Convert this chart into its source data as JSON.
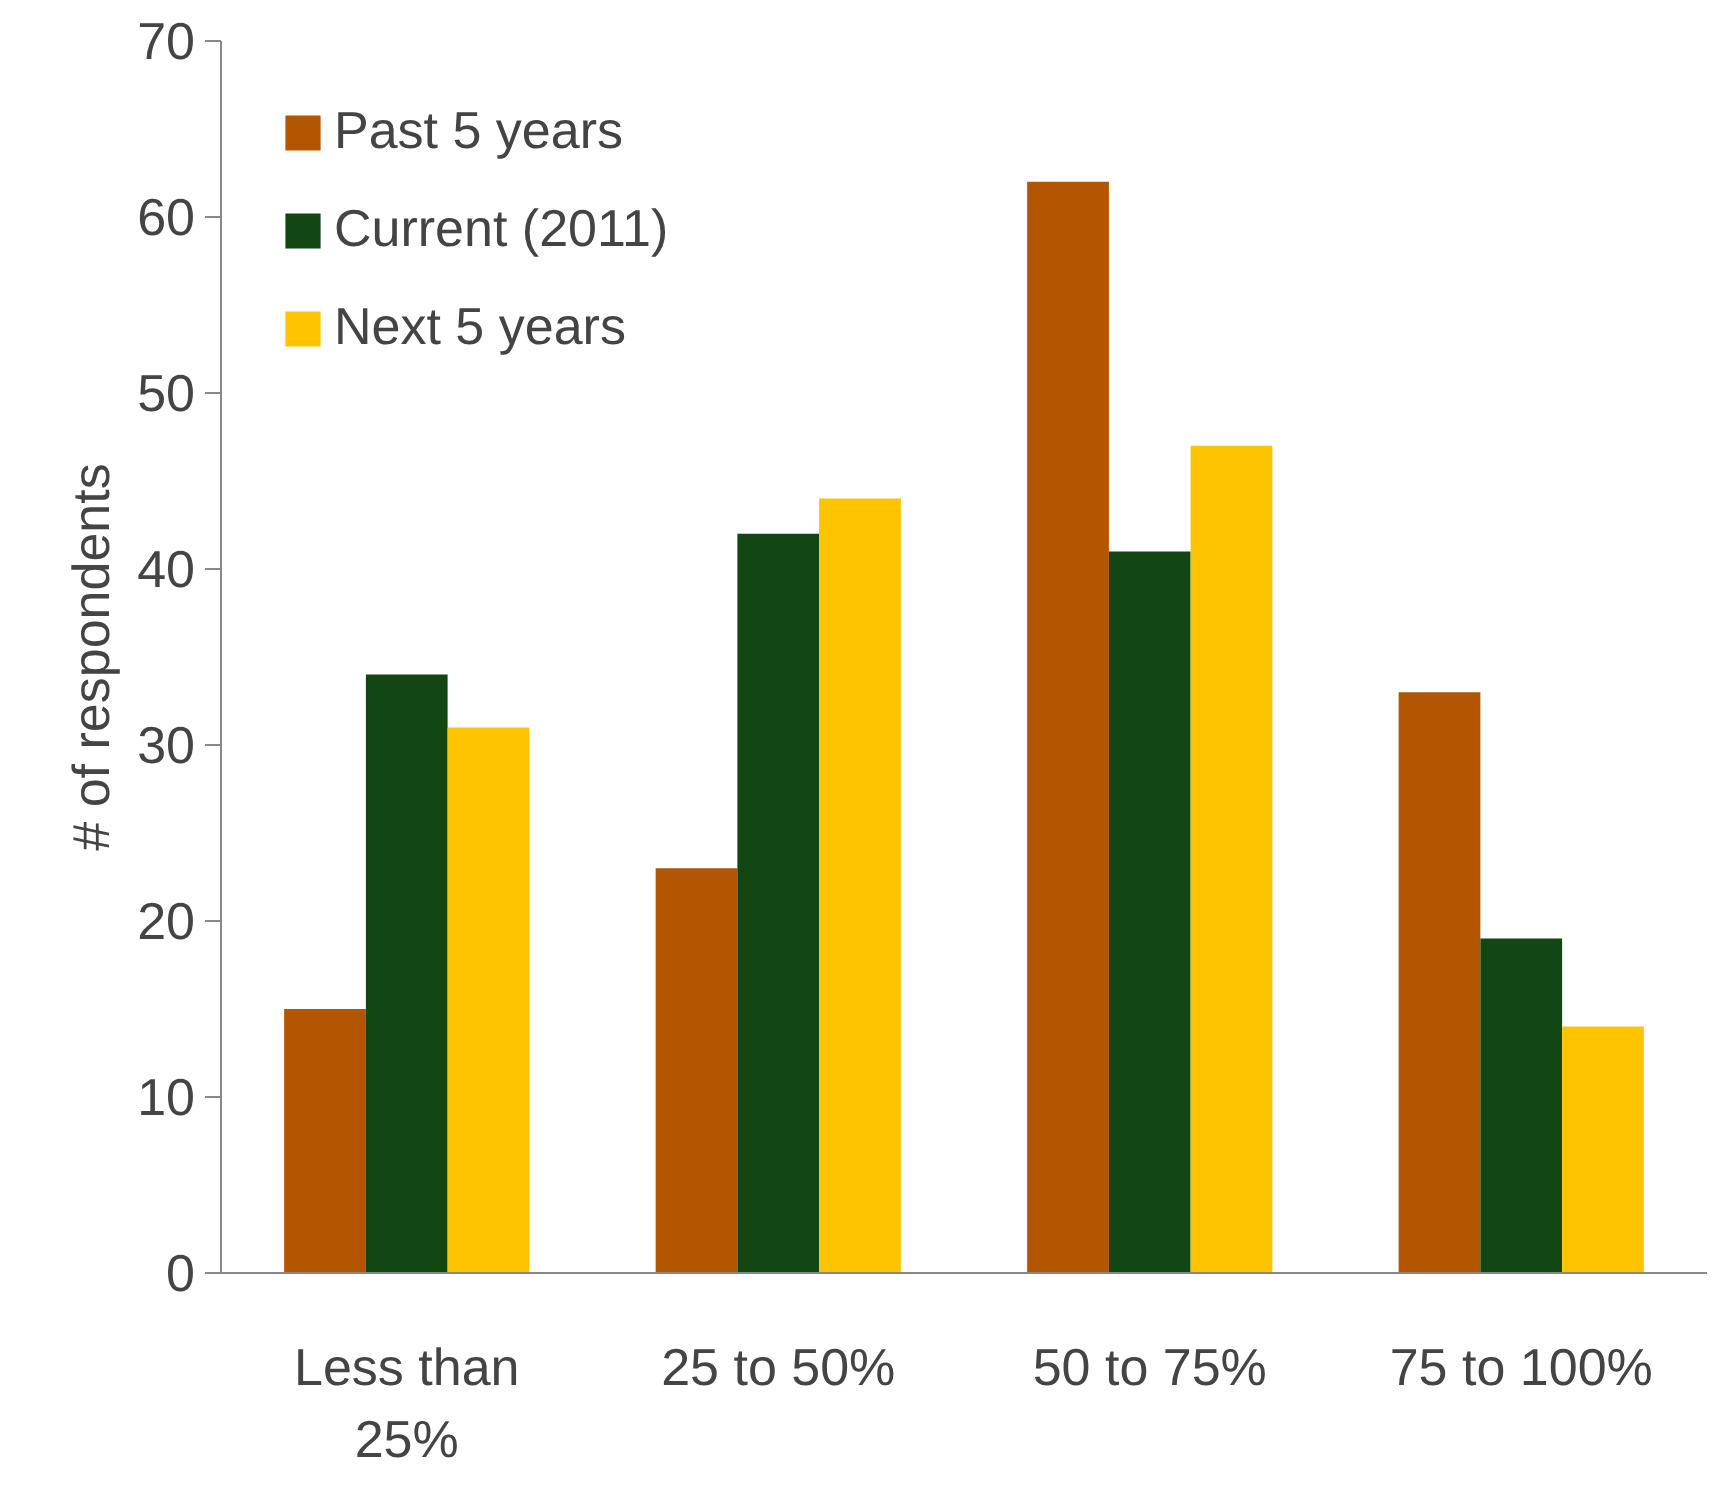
{
  "chart_data": {
    "type": "bar",
    "ylabel": "# of respondents",
    "categories": [
      "Less than 25%",
      "25 to 50%",
      "50 to 75%",
      "75 to 100%"
    ],
    "series": [
      {
        "name": "Past 5 years",
        "color": "#b35600",
        "values": [
          15,
          23,
          62,
          33
        ]
      },
      {
        "name": "Current (2011)",
        "color": "#124714",
        "values": [
          34,
          42,
          41,
          19
        ]
      },
      {
        "name": "Next 5 years",
        "color": "#ffc400",
        "values": [
          31,
          44,
          47,
          14
        ]
      }
    ],
    "ylim": [
      0,
      70
    ],
    "yticks": [
      0,
      10,
      20,
      30,
      40,
      50,
      60,
      70
    ],
    "grid": false,
    "legend": "top left"
  }
}
